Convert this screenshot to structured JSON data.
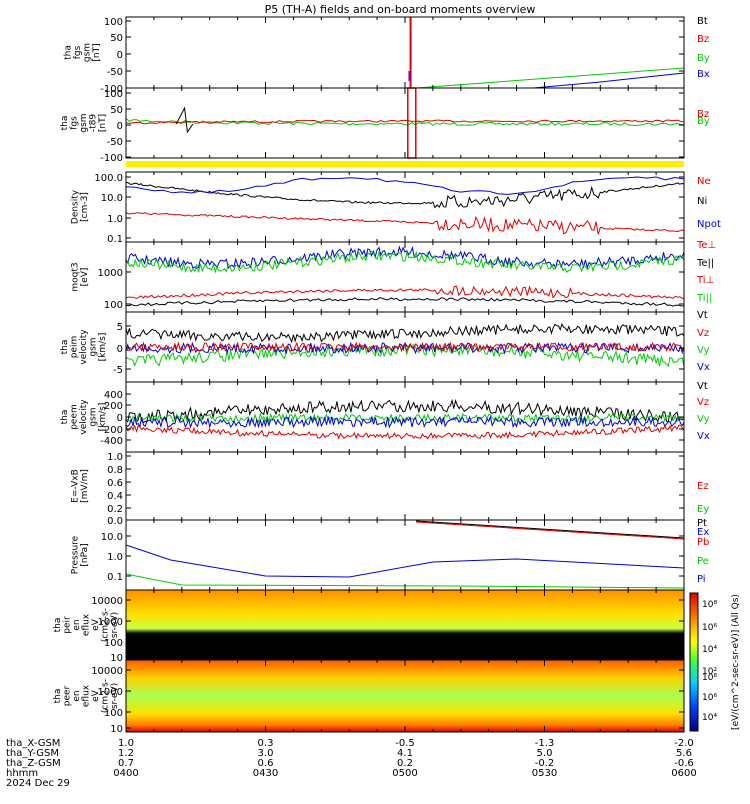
{
  "title": "P5 (TH-A) fields and on-board moments overview",
  "colors": {
    "black": "#000000",
    "red": "#e00000",
    "green": "#00cc00",
    "blue": "#0000dd",
    "yellow": "#ffee00",
    "spec_bg": "#f8b000"
  },
  "chart_data": {
    "type": "line",
    "time_ticks": [
      "0400",
      "0430",
      "0500",
      "0530",
      "0600"
    ],
    "date": "2024 Dec 29",
    "ephemeris": [
      {
        "label": "tha_X-GSM",
        "values": [
          "1.0",
          "0.3",
          "-0.5",
          "-1.3",
          "-2.0"
        ]
      },
      {
        "label": "tha_Y-GSM",
        "values": [
          "1.2",
          "3.0",
          "4.1",
          "5.0",
          "5.6"
        ]
      },
      {
        "label": "tha_Z-GSM",
        "values": [
          "0.7",
          "0.6",
          "0.2",
          "-0.2",
          "-0.6"
        ]
      },
      {
        "label": "hhmm",
        "values": [
          "0400",
          "0430",
          "0500",
          "0530",
          "0600"
        ]
      }
    ],
    "panels": [
      {
        "ylabel": [
          "tha",
          "fgs",
          "gsm",
          "[nT]"
        ],
        "ticks": [
          "100",
          "50",
          "0",
          "-50",
          "-100"
        ],
        "legend": [
          {
            "text": "Bt",
            "color": "black"
          },
          {
            "text": "Bz",
            "color": "red"
          },
          {
            "text": "By",
            "color": "green"
          },
          {
            "text": "Bx",
            "color": "blue"
          }
        ]
      },
      {
        "ylabel": [
          "tha",
          "fgs",
          "gsm",
          "-t89",
          "[nT]"
        ],
        "ticks": [
          "100",
          "50",
          "0",
          "-50",
          "-100"
        ],
        "legend": [
          {
            "text": "Bz",
            "color": "red"
          },
          {
            "text": "By",
            "color": "green"
          }
        ]
      },
      {
        "ylabel": [
          "Density",
          "[cm-3]"
        ],
        "ticks": [
          "100.0",
          "10.0",
          "1.0",
          "0.1"
        ],
        "legend": [
          {
            "text": "Ne",
            "color": "red"
          },
          {
            "text": "Ni",
            "color": "black"
          },
          {
            "text": "Npot",
            "color": "blue"
          }
        ]
      },
      {
        "ylabel": [
          "moqt3",
          "[eV]"
        ],
        "ticks": [
          "1000",
          "100"
        ],
        "legend": [
          {
            "text": "Te⊥",
            "color": "red"
          },
          {
            "text": "Te||",
            "color": "black"
          },
          {
            "text": "Ti⊥",
            "color": "red"
          },
          {
            "text": "Ti||",
            "color": "green"
          }
        ]
      },
      {
        "ylabel": [
          "tha",
          "peim",
          "velocity",
          "gsm",
          "[km/s]"
        ],
        "ticks": [
          "5",
          "0",
          "-5"
        ],
        "legend": [
          {
            "text": "Vt",
            "color": "black"
          },
          {
            "text": "Vz",
            "color": "red"
          },
          {
            "text": "Vy",
            "color": "green"
          },
          {
            "text": "Vx",
            "color": "blue"
          }
        ]
      },
      {
        "ylabel": [
          "tha",
          "peem",
          "velocity",
          "gsm",
          "[km/s]"
        ],
        "ticks": [
          "400",
          "200",
          "0",
          "-200",
          "-400"
        ],
        "legend": [
          {
            "text": "Vt",
            "color": "black"
          },
          {
            "text": "Vz",
            "color": "red"
          },
          {
            "text": "Vy",
            "color": "green"
          },
          {
            "text": "Vx",
            "color": "blue"
          }
        ]
      },
      {
        "ylabel": [
          "E=-VxB",
          "[mV/m]"
        ],
        "ticks": [
          "1.0",
          "0.8",
          "0.6",
          "0.4",
          "0.2",
          "0.0"
        ],
        "legend": [
          {
            "text": "Ez",
            "color": "red"
          },
          {
            "text": "Ey",
            "color": "green"
          },
          {
            "text": "Ex",
            "color": "blue"
          }
        ]
      },
      {
        "ylabel": [
          "Pressure",
          "[nPa]"
        ],
        "ticks": [
          "10.0",
          "1.0",
          "0.1"
        ],
        "legend": [
          {
            "text": "Pt",
            "color": "black"
          },
          {
            "text": "Pb",
            "color": "red"
          },
          {
            "text": "Pe",
            "color": "green"
          },
          {
            "text": "Pi",
            "color": "blue"
          }
        ]
      },
      {
        "ylabel": [
          "tha",
          "peir",
          "en",
          "eflux",
          "eV",
          "(cm2-s-",
          "sr-eV)"
        ],
        "ticks": [
          "10000",
          "1000",
          "100",
          "10"
        ]
      },
      {
        "ylabel": [
          "tha",
          "peer",
          "en",
          "eflux",
          "eV",
          "(cm2-s-",
          "sr-eV)"
        ],
        "ticks": [
          "10000",
          "1000",
          "100",
          "10"
        ]
      }
    ],
    "colorbar": {
      "ticks": [
        "10⁸",
        "10⁶",
        "10⁴",
        "10²"
      ],
      "label": "[eV/(cm^2-sec-sr-eV)] (All Qs)"
    }
  }
}
